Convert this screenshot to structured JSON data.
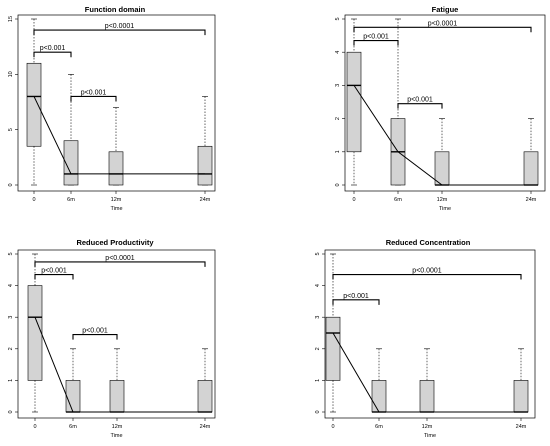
{
  "chart_data": [
    {
      "type": "box",
      "title": "Function domain",
      "xlabel": "Time",
      "ylabel": "",
      "categories": [
        "0",
        "6m",
        "12m",
        "24m"
      ],
      "yticks": [
        0,
        5,
        10,
        15
      ],
      "ylim": [
        0,
        15
      ],
      "boxes": [
        {
          "min": 0,
          "q1": 3.5,
          "median": 8,
          "q3": 11,
          "max": 15
        },
        {
          "min": 0,
          "q1": 0,
          "median": 1,
          "q3": 4,
          "max": 10
        },
        {
          "min": 0,
          "q1": 0,
          "median": 1,
          "q3": 3,
          "max": 7
        },
        {
          "min": 0,
          "q1": 0,
          "median": 1,
          "q3": 3.5,
          "max": 8
        }
      ],
      "trend": [
        8,
        1,
        1,
        1
      ],
      "brackets": [
        {
          "from": 0,
          "to": 3,
          "label": "p<0.0001",
          "y": 14
        },
        {
          "from": 0,
          "to": 1,
          "label": "p<0.001",
          "y": 12
        },
        {
          "from": 1,
          "to": 2,
          "label": "p<0.001",
          "y": 8
        }
      ]
    },
    {
      "type": "box",
      "title": "Fatigue",
      "xlabel": "Time",
      "ylabel": "",
      "categories": [
        "0",
        "6m",
        "12m",
        "24m"
      ],
      "yticks": [
        0,
        1,
        2,
        3,
        4,
        5
      ],
      "ylim": [
        0,
        5
      ],
      "boxes": [
        {
          "min": 0,
          "q1": 1,
          "median": 3,
          "q3": 4,
          "max": 5
        },
        {
          "min": 0,
          "q1": 0,
          "median": 1,
          "q3": 2,
          "max": 5
        },
        {
          "min": 0,
          "q1": 0,
          "median": 0,
          "q3": 1,
          "max": 2
        },
        {
          "min": 0,
          "q1": 0,
          "median": 0,
          "q3": 1,
          "max": 2
        }
      ],
      "trend": [
        3,
        1,
        0,
        0
      ],
      "brackets": [
        {
          "from": 0,
          "to": 3,
          "label": "p<0.0001",
          "y": 4.75
        },
        {
          "from": 0,
          "to": 1,
          "label": "p<0.001",
          "y": 4.35
        },
        {
          "from": 1,
          "to": 2,
          "label": "p<0.001",
          "y": 2.45
        }
      ]
    },
    {
      "type": "box",
      "title": "Reduced Productivity",
      "xlabel": "Time",
      "ylabel": "",
      "categories": [
        "0",
        "6m",
        "12m",
        "24m"
      ],
      "yticks": [
        0,
        1,
        2,
        3,
        4,
        5
      ],
      "ylim": [
        0,
        5
      ],
      "boxes": [
        {
          "min": 0,
          "q1": 1,
          "median": 3,
          "q3": 4,
          "max": 5
        },
        {
          "min": 0,
          "q1": 0,
          "median": 0,
          "q3": 1,
          "max": 2
        },
        {
          "min": 0,
          "q1": 0,
          "median": 0,
          "q3": 1,
          "max": 2
        },
        {
          "min": 0,
          "q1": 0,
          "median": 0,
          "q3": 1,
          "max": 2
        }
      ],
      "trend": [
        3,
        0,
        0,
        0
      ],
      "brackets": [
        {
          "from": 0,
          "to": 3,
          "label": "p<0.0001",
          "y": 4.75
        },
        {
          "from": 0,
          "to": 1,
          "label": "p<0.001",
          "y": 4.35
        },
        {
          "from": 1,
          "to": 2,
          "label": "p<0.001",
          "y": 2.45
        }
      ]
    },
    {
      "type": "box",
      "title": "Reduced Concentration",
      "xlabel": "Time",
      "ylabel": "",
      "categories": [
        "0",
        "6m",
        "12m",
        "24m"
      ],
      "yticks": [
        0,
        1,
        2,
        3,
        4,
        5
      ],
      "ylim": [
        0,
        5
      ],
      "boxes": [
        {
          "min": 0,
          "q1": 1,
          "median": 2.5,
          "q3": 3,
          "max": 5
        },
        {
          "min": 0,
          "q1": 0,
          "median": 0,
          "q3": 1,
          "max": 2
        },
        {
          "min": 0,
          "q1": 0,
          "median": 0,
          "q3": 1,
          "max": 2
        },
        {
          "min": 0,
          "q1": 0,
          "median": 0,
          "q3": 1,
          "max": 2
        }
      ],
      "trend": [
        2.5,
        0,
        0,
        0
      ],
      "brackets": [
        {
          "from": 0,
          "to": 3,
          "label": "p<0.0001",
          "y": 4.35
        },
        {
          "from": 0,
          "to": 1,
          "label": "p<0.001",
          "y": 3.55
        }
      ]
    }
  ]
}
